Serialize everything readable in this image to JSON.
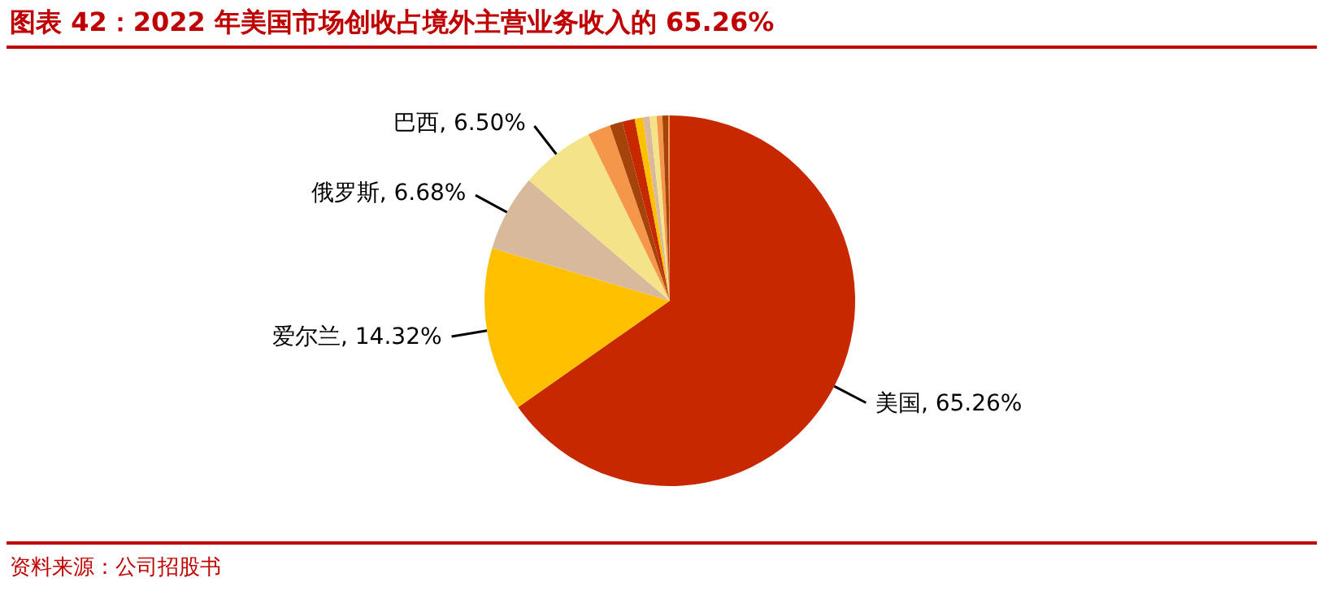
{
  "chart_data": {
    "type": "pie",
    "title": "图表 42：2022 年美国市场创收占境外主营业务收入的 65.26%",
    "annotations": [
      "资料来源：公司招股书"
    ],
    "categories": [
      "美国",
      "爱尔兰",
      "俄罗斯",
      "巴西",
      null,
      null,
      null,
      null,
      null,
      null,
      null,
      null,
      null
    ],
    "values": [
      65.26,
      14.32,
      6.68,
      6.5,
      2.0,
      1.1,
      1.1,
      0.7,
      0.6,
      0.6,
      0.5,
      0.5,
      0.14
    ],
    "value_labels": [
      "65.26%",
      "14.32%",
      "6.68%",
      "6.50%",
      null,
      null,
      null,
      null,
      null,
      null,
      null,
      null,
      null
    ],
    "colors": [
      "#c82800",
      "#ffc000",
      "#d9b99b",
      "#f5e38a",
      "#f5974a",
      "#a5430a",
      "#c82800",
      "#ffc000",
      "#d9b99b",
      "#f5e38a",
      "#f5974a",
      "#a5430a",
      "#f5974a"
    ],
    "legend": false
  }
}
